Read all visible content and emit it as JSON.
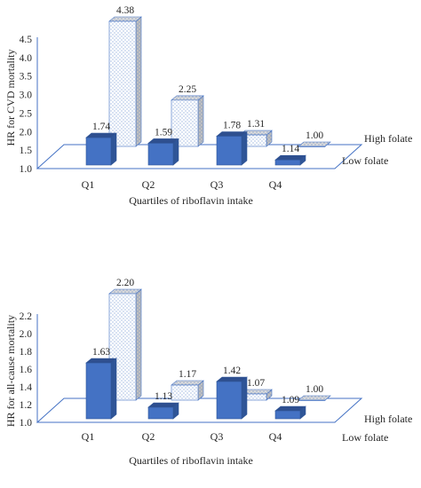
{
  "colors": {
    "low_folate_front": "#4472c4",
    "low_folate_side": "#2f5597",
    "low_folate_top": "#2e4f8f",
    "high_folate_pattern": "dotted-white",
    "high_folate_front": "#ffffff",
    "high_folate_top": "#d9d9d9",
    "high_folate_side": "#bfbfbf",
    "axis_line": "#4472c4",
    "text": "#262626"
  },
  "chart_data": [
    {
      "type": "bar",
      "three_d": true,
      "title": "",
      "xlabel": "Quartiles of riboflavin intake",
      "ylabel": "HR for CVD mortality",
      "categories": [
        "Q1",
        "Q2",
        "Q3",
        "Q4"
      ],
      "ylim": [
        1.0,
        4.5
      ],
      "yticks": [
        "1.0",
        "1.5",
        "2.0",
        "2.5",
        "3.0",
        "3.5",
        "4.0",
        "4.5"
      ],
      "grid": false,
      "series": [
        {
          "name": "Low folate",
          "values": [
            1.74,
            1.59,
            1.78,
            1.14
          ],
          "labels": [
            "1.74",
            "1.59",
            "1.78",
            "1.14"
          ]
        },
        {
          "name": "High folate",
          "values": [
            4.38,
            2.25,
            1.31,
            1.0
          ],
          "labels": [
            "4.38",
            "2.25",
            "1.31",
            "1.00"
          ]
        }
      ]
    },
    {
      "type": "bar",
      "three_d": true,
      "title": "",
      "xlabel": "Quartiles of riboflavin intake",
      "ylabel": "HR for all-cause mortality",
      "categories": [
        "Q1",
        "Q2",
        "Q3",
        "Q4"
      ],
      "ylim": [
        1.0,
        2.2
      ],
      "yticks": [
        "1.0",
        "1.2",
        "1.4",
        "1.6",
        "1.8",
        "2.0",
        "2.2"
      ],
      "grid": false,
      "series": [
        {
          "name": "Low folate",
          "values": [
            1.63,
            1.13,
            1.42,
            1.09
          ],
          "labels": [
            "1.63",
            "1.13",
            "1.42",
            "1.09"
          ]
        },
        {
          "name": "High folate",
          "values": [
            2.2,
            1.17,
            1.07,
            1.0
          ],
          "labels": [
            "2.20",
            "1.17",
            "1.07",
            "1.00"
          ]
        }
      ]
    }
  ]
}
